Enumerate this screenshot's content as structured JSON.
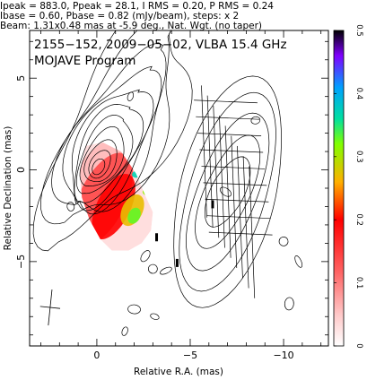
{
  "header": {
    "line1": "Ipeak = 883.0, Ppeak = 28.1, I RMS = 0.20, P RMS = 0.24",
    "line2": "Ibase = 0.60, Pbase = 0.82 (mJy/beam), steps: x 2",
    "line3": "Beam: 1.31x0.48 mas at -5.9 deg., Nat. Wgt. (no taper)"
  },
  "chart_data": {
    "type": "heatmap",
    "title": "2155−152, 2009−05−02, VLBA 15.4 GHz",
    "subtitle": "MOJAVE Program",
    "xlabel": "Relative R.A. (mas)",
    "ylabel": "Relative Declination (mas)",
    "xlim": [
      3.6,
      -12.4
    ],
    "ylim": [
      -9.6,
      7.6
    ],
    "x_ticks": [
      {
        "value": 0,
        "label": "0"
      },
      {
        "value": -5,
        "label": "−5"
      },
      {
        "value": -10,
        "label": "−10"
      }
    ],
    "y_ticks": [
      {
        "value": 5,
        "label": "5"
      },
      {
        "value": 0,
        "label": "0"
      },
      {
        "value": -5,
        "label": "−5"
      }
    ],
    "colorbar": {
      "min": 0,
      "max": 0.5,
      "ticks": [
        {
          "value": 0.5,
          "label": "0.5"
        },
        {
          "value": 0.4,
          "label": "0.4"
        },
        {
          "value": 0.3,
          "label": "0.3"
        },
        {
          "value": 0.2,
          "label": "0.2"
        },
        {
          "value": 0.1,
          "label": "0.1"
        },
        {
          "value": 0,
          "label": "0"
        }
      ],
      "stops": [
        {
          "value": 0.0,
          "color": "#ffffff"
        },
        {
          "value": 0.05,
          "color": "#ffc8c8"
        },
        {
          "value": 0.12,
          "color": "#ff6060"
        },
        {
          "value": 0.2,
          "color": "#ff0000"
        },
        {
          "value": 0.26,
          "color": "#ffb000"
        },
        {
          "value": 0.32,
          "color": "#80ff00"
        },
        {
          "value": 0.36,
          "color": "#00e0a0"
        },
        {
          "value": 0.41,
          "color": "#00a0ff"
        },
        {
          "value": 0.46,
          "color": "#8000ff"
        },
        {
          "value": 0.5,
          "color": "#000000"
        }
      ]
    },
    "stokes_i_contours": {
      "center": [
        0.0,
        0.0
      ],
      "rotation_deg": -62,
      "semi_axes": [
        [
          0.45,
          0.3
        ],
        [
          0.8,
          0.5
        ],
        [
          1.2,
          0.75
        ],
        [
          1.7,
          0.95
        ],
        [
          2.2,
          1.15
        ],
        [
          2.8,
          1.35
        ],
        [
          3.4,
          1.55
        ],
        [
          4.0,
          1.75
        ],
        [
          4.6,
          2.0
        ],
        [
          5.4,
          2.3
        ],
        [
          6.3,
          2.6
        ]
      ]
    },
    "fractional_polarization_region": {
      "outline": [
        [
          0.6,
          1.3
        ],
        [
          -0.3,
          1.5
        ],
        [
          -1.3,
          1.0
        ],
        [
          -2.1,
          -0.2
        ],
        [
          -2.6,
          -1.4
        ],
        [
          -3.0,
          -2.3
        ],
        [
          -2.9,
          -3.3
        ],
        [
          -2.4,
          -4.0
        ],
        [
          -1.7,
          -4.4
        ],
        [
          -0.8,
          -4.4
        ],
        [
          -0.2,
          -3.8
        ],
        [
          0.4,
          -2.7
        ],
        [
          0.8,
          -1.5
        ],
        [
          0.9,
          0.0
        ]
      ],
      "layers": [
        {
          "value": 0.06,
          "center": [
            0.05,
            -1.4
          ],
          "semi_axes": [
            3.3,
            1.6
          ],
          "rotation_deg": -64
        },
        {
          "value": 0.14,
          "center": [
            -0.3,
            -1.6
          ],
          "semi_axes": [
            2.7,
            1.25
          ],
          "rotation_deg": -64
        },
        {
          "value": 0.2,
          "center": [
            -0.9,
            -2.0
          ],
          "semi_axes": [
            1.9,
            0.9
          ],
          "rotation_deg": -64
        },
        {
          "value": 0.27,
          "center": [
            -1.9,
            -2.2
          ],
          "semi_axes": [
            0.9,
            0.55
          ],
          "rotation_deg": -64
        },
        {
          "value": 0.33,
          "center": [
            -2.0,
            -2.5
          ],
          "semi_axes": [
            0.45,
            0.32
          ],
          "rotation_deg": -64
        },
        {
          "value": 0.37,
          "center": [
            -2.1,
            -0.25
          ],
          "semi_axes": [
            0.22,
            0.18
          ],
          "rotation_deg": 0
        },
        {
          "value": 0.31,
          "center": [
            -2.7,
            -1.2
          ],
          "semi_axes": [
            0.25,
            0.2
          ],
          "rotation_deg": 0
        },
        {
          "value": 0.33,
          "center": [
            -2.6,
            -4.2
          ],
          "semi_axes": [
            0.3,
            0.25
          ],
          "rotation_deg": 0
        }
      ]
    },
    "polarized_intensity_contours": {
      "center": [
        -7.0,
        -1.2
      ],
      "rotation_deg": -70,
      "semi_axes": [
        [
          2.0,
          0.9
        ],
        [
          3.0,
          1.3
        ],
        [
          4.0,
          1.8
        ],
        [
          5.0,
          2.3
        ],
        [
          6.0,
          2.7
        ]
      ]
    },
    "beam": {
      "center": [
        2.5,
        -7.5
      ],
      "major_mas": 1.31,
      "minor_mas": 0.48,
      "pa_deg": -5.9
    }
  }
}
